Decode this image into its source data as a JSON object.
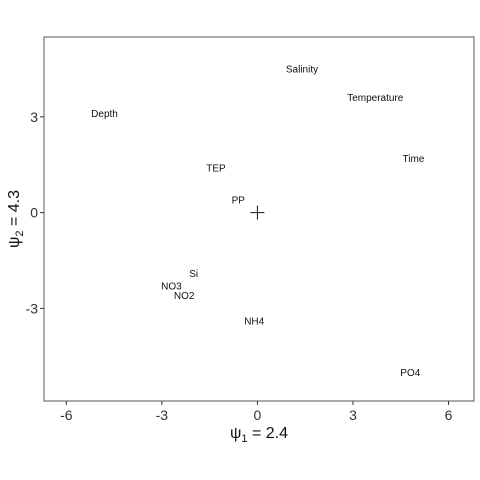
{
  "chart_data": {
    "type": "scatter",
    "title": "",
    "xlabel": {
      "symbol": "ψ",
      "subscript": "1",
      "rest": " = 2.4"
    },
    "ylabel": {
      "symbol": "ψ",
      "subscript": "2",
      "rest": " = 4.3"
    },
    "xlim": [
      -6.7,
      6.8
    ],
    "ylim": [
      -5.9,
      5.5
    ],
    "x_ticks": [
      -6,
      -3,
      0,
      3,
      6
    ],
    "y_ticks": [
      -3,
      0,
      3
    ],
    "tick_labels_x": [
      "-6",
      "-3",
      "0",
      "3",
      "6"
    ],
    "tick_labels_y": [
      "-3",
      "0",
      "3"
    ],
    "grid": false,
    "origin_marker": {
      "x": 0,
      "y": 0,
      "shape": "plus"
    },
    "points": [
      {
        "label": "Salinity",
        "x": 1.4,
        "y": 4.5
      },
      {
        "label": "Temperature",
        "x": 3.7,
        "y": 3.6
      },
      {
        "label": "Depth",
        "x": -4.8,
        "y": 3.1
      },
      {
        "label": "Time",
        "x": 4.9,
        "y": 1.7
      },
      {
        "label": "TEP",
        "x": -1.3,
        "y": 1.4
      },
      {
        "label": "PP",
        "x": -0.6,
        "y": 0.4
      },
      {
        "label": "Si",
        "x": -2.0,
        "y": -1.9
      },
      {
        "label": "NO3",
        "x": -2.7,
        "y": -2.3
      },
      {
        "label": "NO2",
        "x": -2.3,
        "y": -2.6
      },
      {
        "label": "NH4",
        "x": -0.1,
        "y": -3.4
      },
      {
        "label": "PO4",
        "x": 4.8,
        "y": -5.0
      }
    ]
  }
}
